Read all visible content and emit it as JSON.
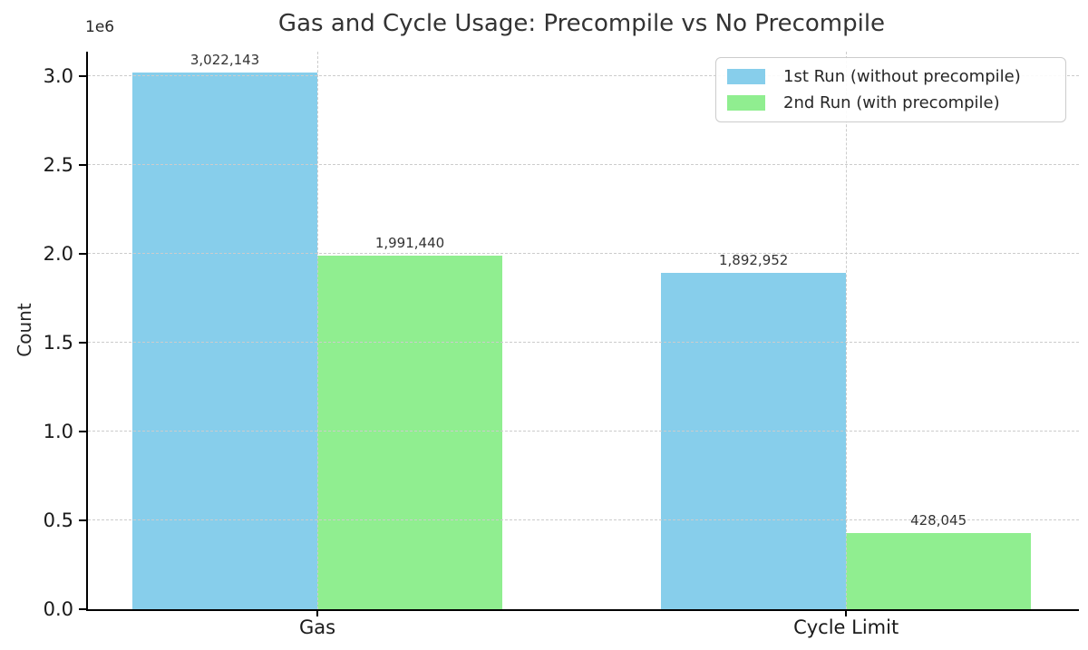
{
  "chart_data": {
    "type": "bar",
    "title": "Gas and Cycle Usage: Precompile vs No Precompile",
    "ylabel": "Count",
    "xlabel": "",
    "offset_label": "1e6",
    "categories": [
      "Gas",
      "Cycle Limit"
    ],
    "series": [
      {
        "name": "1st Run (without precompile)",
        "color": "#87CEEB",
        "values": [
          3022143,
          1892952
        ],
        "value_labels": [
          "3,022,143",
          "1,892,952"
        ]
      },
      {
        "name": "2nd Run (with precompile)",
        "color": "#90EE90",
        "values": [
          1991440,
          428045
        ],
        "value_labels": [
          "1,991,440",
          "428,045"
        ]
      }
    ],
    "ylim": [
      0,
      3140000
    ],
    "yticks": [
      0.0,
      0.5,
      1.0,
      1.5,
      2.0,
      2.5,
      3.0
    ],
    "ytick_labels": [
      "0.0",
      "0.5",
      "1.0",
      "1.5",
      "2.0",
      "2.5",
      "3.0"
    ],
    "ytick_scale": 1000000,
    "grid": true,
    "grid_style": "dashed",
    "legend_position": "upper right"
  }
}
